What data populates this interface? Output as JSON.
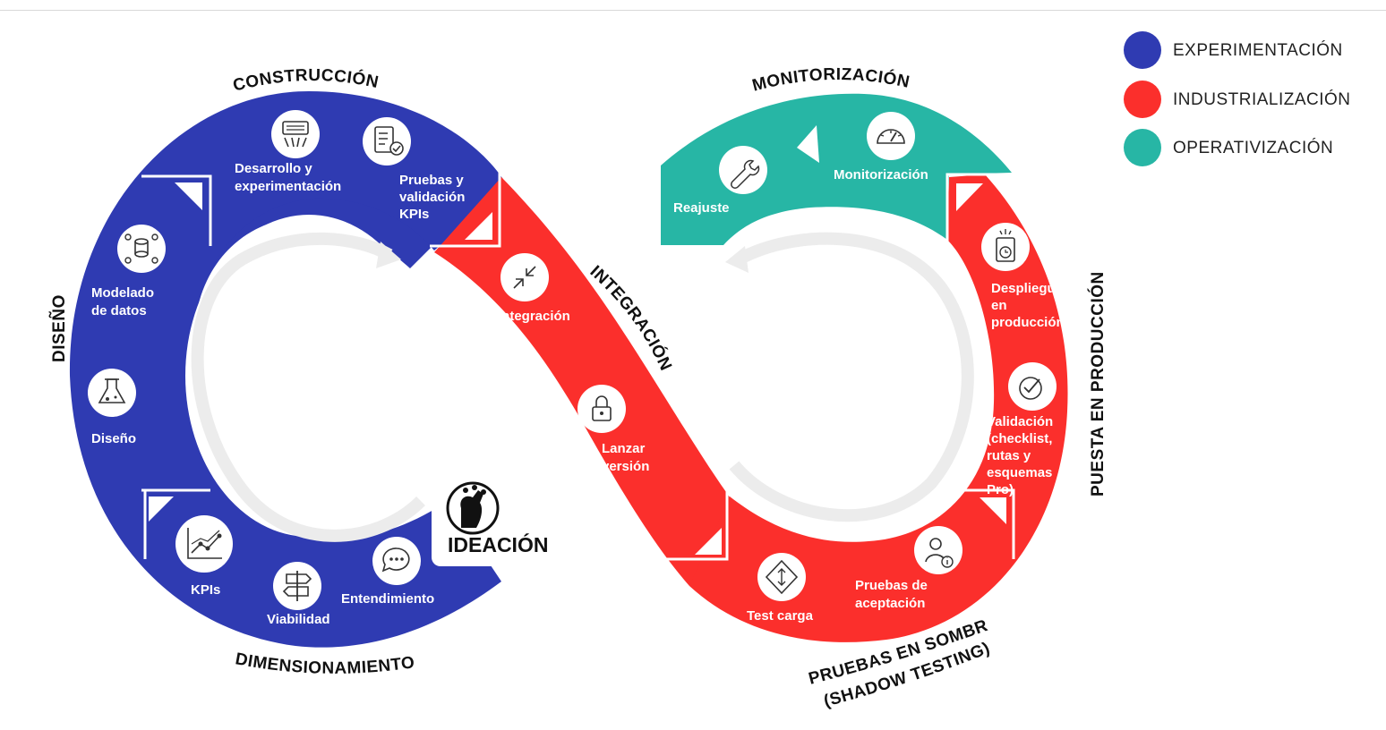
{
  "legend": [
    {
      "label": "EXPERIMENTACIÓN",
      "color": "#2f3bb2"
    },
    {
      "label": "INDUSTRIALIZACIÓN",
      "color": "#fb2f2c"
    },
    {
      "label": "OPERATIVIZACIÓN",
      "color": "#27b6a5"
    }
  ],
  "colors": {
    "blue": "#2f3bb2",
    "red": "#fb2f2c",
    "teal": "#27b6a5"
  },
  "sections": {
    "construccion": "CONSTRUCCIÓN",
    "monitorizacion": "MONITORIZACIÓN",
    "diseno": "DISEÑO",
    "integracion": "INTEGRACIÓN",
    "puesta": "PUESTA EN PRODUCCIÓN",
    "dimensionamiento": "DIMENSIONAMIENTO",
    "pruebas_line1": "PRUEBAS EN SOMBRA",
    "pruebas_line2": "(SHADOW TESTING)",
    "ideacion": "IDEACIÓN"
  },
  "steps": {
    "desarrollo": {
      "lines": [
        "Desarrollo y",
        "experimentación"
      ],
      "icon": "keyboard-icon"
    },
    "pruebas_kpis": {
      "lines": [
        "Pruebas y",
        "validación",
        "KPIs"
      ],
      "icon": "checklist-icon"
    },
    "modelado": {
      "lines": [
        "Modelado",
        "de datos"
      ],
      "icon": "database-icon"
    },
    "diseno": {
      "lines": [
        "Diseño"
      ],
      "icon": "flask-icon"
    },
    "kpis": {
      "lines": [
        "KPIs"
      ],
      "icon": "line-chart-icon"
    },
    "viabilidad": {
      "lines": [
        "Viabilidad"
      ],
      "icon": "signpost-icon"
    },
    "entendimiento": {
      "lines": [
        "Entendimiento"
      ],
      "icon": "chat-bubble-icon"
    },
    "integracion": {
      "lines": [
        "Integración"
      ],
      "icon": "merge-arrows-icon"
    },
    "lanzar": {
      "lines": [
        "Lanzar",
        "versión"
      ],
      "icon": "lock-icon"
    },
    "test_carga": {
      "lines": [
        "Test carga"
      ],
      "icon": "load-test-icon"
    },
    "aceptacion": {
      "lines": [
        "Pruebas de",
        "aceptación"
      ],
      "icon": "user-info-icon"
    },
    "validacion": {
      "lines": [
        "Validación",
        "(checklist,",
        "rutas y",
        "esquemas",
        "Pro)"
      ],
      "icon": "check-circle-icon"
    },
    "despliegue": {
      "lines": [
        "Despliegue",
        "en",
        "producción"
      ],
      "icon": "deploy-icon"
    },
    "monitorizacion": {
      "lines": [
        "Monitorización"
      ],
      "icon": "gauge-icon"
    },
    "reajuste": {
      "lines": [
        "Reajuste"
      ],
      "icon": "wrench-icon"
    }
  }
}
